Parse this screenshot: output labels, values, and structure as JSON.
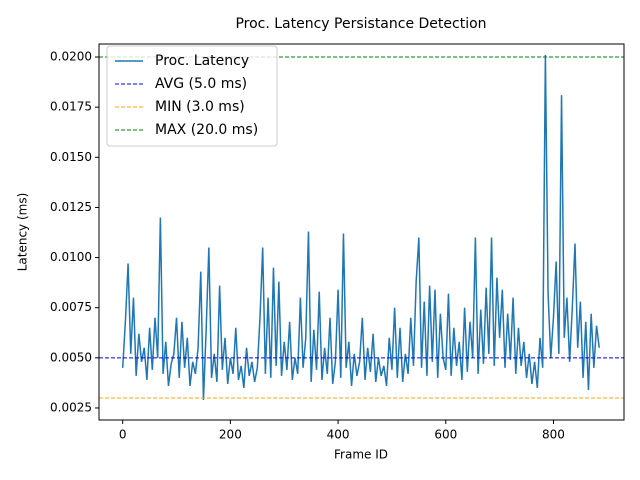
{
  "chart_data": {
    "type": "line",
    "title": "Proc. Latency Persistance Detection",
    "x_label": "Frame ID",
    "y_label": "Latency (ms)",
    "xlim": [
      -44,
      931
    ],
    "ylim": [
      0.0019,
      0.02065
    ],
    "xticks": [
      0,
      200,
      400,
      600,
      800
    ],
    "yticks": [
      0.0025,
      {
        "value": 0.005,
        "label": "0.0050"
      },
      0.0075,
      {
        "value": 0.01,
        "label": "0.0100"
      },
      0.0125,
      {
        "value": 0.015,
        "label": "0.0150"
      },
      0.0175,
      {
        "value": 0.02,
        "label": "0.0200"
      }
    ],
    "legend": "upper left",
    "x": [
      0,
      5,
      10,
      15,
      20,
      25,
      30,
      35,
      40,
      45,
      50,
      55,
      60,
      65,
      70,
      75,
      80,
      85,
      90,
      95,
      100,
      105,
      110,
      115,
      120,
      125,
      130,
      135,
      140,
      145,
      150,
      155,
      160,
      165,
      170,
      175,
      180,
      185,
      190,
      195,
      200,
      205,
      210,
      215,
      220,
      225,
      230,
      235,
      240,
      245,
      250,
      255,
      260,
      265,
      270,
      275,
      280,
      285,
      290,
      295,
      300,
      305,
      310,
      315,
      320,
      325,
      330,
      335,
      340,
      345,
      350,
      355,
      360,
      365,
      370,
      375,
      380,
      385,
      390,
      395,
      400,
      405,
      410,
      415,
      420,
      425,
      430,
      435,
      440,
      445,
      450,
      455,
      460,
      465,
      470,
      475,
      480,
      485,
      490,
      495,
      500,
      505,
      510,
      515,
      520,
      525,
      530,
      535,
      540,
      545,
      550,
      555,
      560,
      565,
      570,
      575,
      580,
      585,
      590,
      595,
      600,
      605,
      610,
      615,
      620,
      625,
      630,
      635,
      640,
      645,
      650,
      655,
      660,
      665,
      670,
      675,
      680,
      685,
      690,
      695,
      700,
      705,
      710,
      715,
      720,
      725,
      730,
      735,
      740,
      745,
      750,
      755,
      760,
      765,
      770,
      775,
      780,
      785,
      790,
      795,
      800,
      805,
      810,
      815,
      820,
      825,
      830,
      835,
      840,
      845,
      850,
      855,
      860,
      865,
      870,
      875,
      880,
      885
    ],
    "series": [
      {
        "name": "Proc. Latency",
        "color": "#1f77b4",
        "values": [
          0.0045,
          0.0068,
          0.0097,
          0.0052,
          0.008,
          0.0041,
          0.0062,
          0.0048,
          0.0055,
          0.0039,
          0.0065,
          0.0044,
          0.007,
          0.005,
          0.012,
          0.0042,
          0.0058,
          0.0036,
          0.0047,
          0.0052,
          0.007,
          0.004,
          0.0068,
          0.0045,
          0.006,
          0.0036,
          0.0048,
          0.0042,
          0.0055,
          0.0093,
          0.0029,
          0.0064,
          0.0105,
          0.004,
          0.0052,
          0.0038,
          0.0086,
          0.0044,
          0.006,
          0.0037,
          0.005,
          0.0042,
          0.0065,
          0.0039,
          0.0046,
          0.0035,
          0.0055,
          0.0041,
          0.0048,
          0.0038,
          0.0045,
          0.007,
          0.0105,
          0.0042,
          0.008,
          0.004,
          0.0095,
          0.0046,
          0.0088,
          0.0041,
          0.0058,
          0.0044,
          0.0068,
          0.0039,
          0.005,
          0.0042,
          0.008,
          0.0045,
          0.006,
          0.0113,
          0.0038,
          0.0064,
          0.0044,
          0.0083,
          0.0039,
          0.0055,
          0.0042,
          0.007,
          0.0037,
          0.0048,
          0.0084,
          0.004,
          0.0112,
          0.0045,
          0.0058,
          0.0036,
          0.0052,
          0.0041,
          0.0048,
          0.007,
          0.0039,
          0.0055,
          0.0043,
          0.0062,
          0.0038,
          0.005,
          0.0041,
          0.0046,
          0.0036,
          0.006,
          0.0044,
          0.0075,
          0.004,
          0.0065,
          0.0038,
          0.0052,
          0.0042,
          0.007,
          0.0046,
          0.0088,
          0.011,
          0.0045,
          0.0078,
          0.0041,
          0.0086,
          0.0048,
          0.0084,
          0.004,
          0.0072,
          0.005,
          0.0044,
          0.0082,
          0.0041,
          0.0065,
          0.0046,
          0.0058,
          0.0039,
          0.0075,
          0.0043,
          0.0068,
          0.005,
          0.011,
          0.0042,
          0.0074,
          0.0047,
          0.0085,
          0.0052,
          0.011,
          0.0046,
          0.009,
          0.006,
          0.0084,
          0.0045,
          0.0072,
          0.0049,
          0.008,
          0.0042,
          0.0065,
          0.0046,
          0.0058,
          0.004,
          0.0052,
          0.0037,
          0.0048,
          0.0035,
          0.006,
          0.0045,
          0.0201,
          0.0082,
          0.005,
          0.007,
          0.0098,
          0.0052,
          0.0181,
          0.006,
          0.008,
          0.0048,
          0.0075,
          0.0107,
          0.0055,
          0.0078,
          0.004,
          0.0068,
          0.0034,
          0.0072,
          0.0045,
          0.0066,
          0.0055
        ]
      }
    ],
    "reference_lines": [
      {
        "name": "AVG (5.0 ms)",
        "value": 0.005,
        "color": "#0000ff"
      },
      {
        "name": "MIN (3.0 ms)",
        "value": 0.003,
        "color": "#ffa500"
      },
      {
        "name": "MAX (20.0 ms)",
        "value": 0.02,
        "color": "#008000"
      }
    ]
  }
}
